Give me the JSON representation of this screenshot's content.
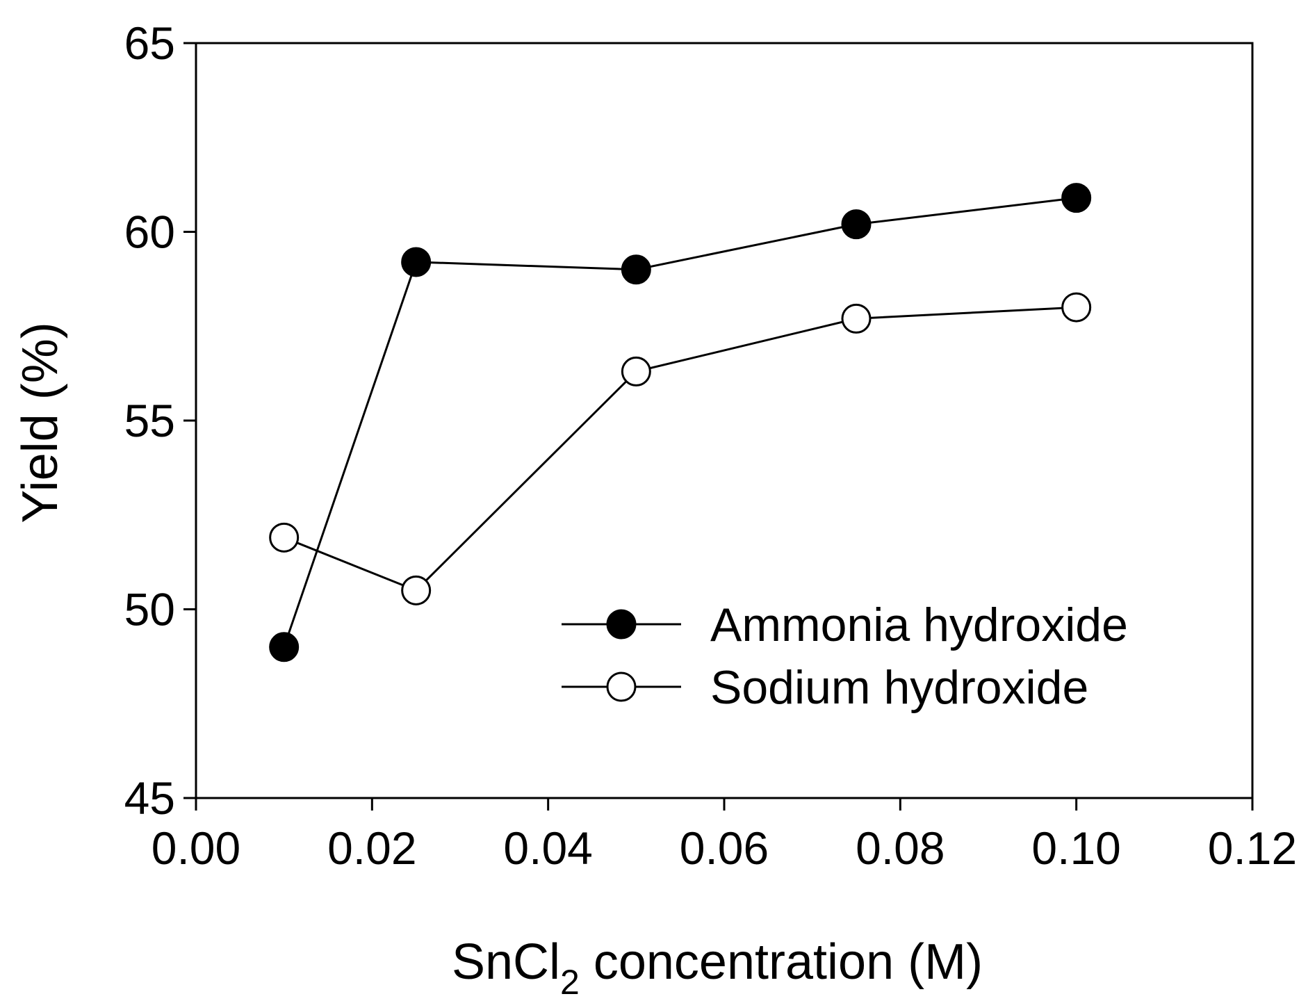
{
  "chart_data": {
    "type": "line",
    "title": "",
    "xlabel": "SnCl",
    "xlabel_subscript": "2",
    "xlabel_suffix": " concentration (M)",
    "ylabel": "Yield (%)",
    "xlim": [
      0.0,
      0.12
    ],
    "ylim": [
      45,
      65
    ],
    "x_ticks": [
      0.0,
      0.02,
      0.04,
      0.06,
      0.08,
      0.1,
      0.12
    ],
    "x_tick_labels": [
      "0.00",
      "0.02",
      "0.04",
      "0.06",
      "0.08",
      "0.10",
      "0.12"
    ],
    "y_ticks": [
      45,
      50,
      55,
      60,
      65
    ],
    "y_tick_labels": [
      "45",
      "50",
      "55",
      "60",
      "65"
    ],
    "grid": false,
    "legend_position": "center-right",
    "series": [
      {
        "name": "Ammonia hydroxide",
        "marker": "filled-circle",
        "color": "#000000",
        "x": [
          0.01,
          0.025,
          0.05,
          0.075,
          0.1
        ],
        "y": [
          49.0,
          59.2,
          59.0,
          60.2,
          60.9
        ]
      },
      {
        "name": "Sodium hydroxide",
        "marker": "open-circle",
        "color": "#000000",
        "x": [
          0.01,
          0.025,
          0.05,
          0.075,
          0.1
        ],
        "y": [
          51.9,
          50.5,
          56.3,
          57.7,
          58.0
        ]
      }
    ]
  }
}
